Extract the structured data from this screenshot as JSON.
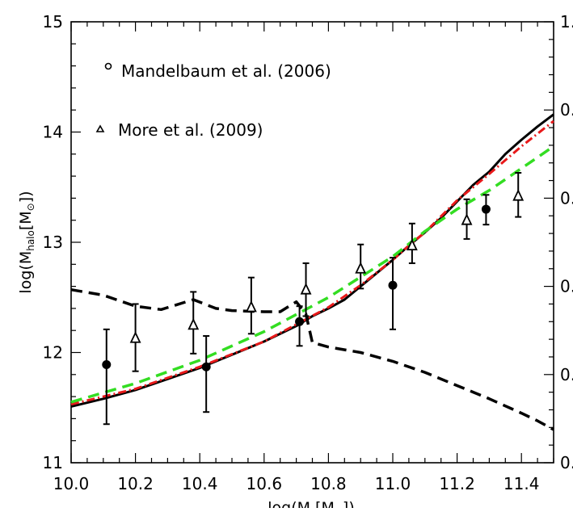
{
  "chart_data": {
    "type": "line",
    "xlabel": "log(M",
    "xlabel_sub": "*",
    "xlabel_unit_open": "[M",
    "xlabel_unit_close": "])",
    "ylabel_prefix": "log(M",
    "ylabel_sub": "halo",
    "ylabel_unit_open": "[M",
    "ylabel_unit_close": "])",
    "sun_symbol": "⊙",
    "xlim": [
      10.0,
      11.5
    ],
    "ylim": [
      11.0,
      15.0
    ],
    "x_ticks": [
      10.0,
      10.2,
      10.4,
      10.6,
      10.8,
      11.0,
      11.2,
      11.4
    ],
    "x_tick_labels": [
      "10.0",
      "10.2",
      "10.4",
      "10.6",
      "10.8",
      "11.0",
      "11.2",
      "11.4"
    ],
    "y_ticks": [
      11,
      12,
      13,
      14,
      15
    ],
    "y_tick_labels": [
      "11",
      "12",
      "13",
      "14",
      "15"
    ],
    "right_axis_tick_labels": [
      "0.",
      "0.",
      "0.",
      "0.",
      "0.",
      "1."
    ],
    "legend": [
      {
        "marker": "circle-open",
        "label": "Mandelbaum et al. (2006)"
      },
      {
        "marker": "triangle-open",
        "label": "More et al. (2009)"
      }
    ],
    "series": [
      {
        "style": "solid",
        "color": "#000000",
        "x": [
          10.0,
          10.1,
          10.2,
          10.3,
          10.4,
          10.5,
          10.6,
          10.7,
          10.75,
          10.8,
          10.85,
          10.9,
          10.95,
          11.0,
          11.05,
          11.1,
          11.15,
          11.2,
          11.25,
          11.3,
          11.35,
          11.4,
          11.45,
          11.5
        ],
        "y": [
          11.51,
          11.58,
          11.66,
          11.76,
          11.86,
          11.98,
          12.1,
          12.24,
          12.33,
          12.4,
          12.48,
          12.6,
          12.72,
          12.84,
          12.97,
          13.09,
          13.22,
          13.37,
          13.52,
          13.64,
          13.8,
          13.93,
          14.05,
          14.16
        ]
      },
      {
        "style": "dash-dot",
        "color": "#e8191a",
        "x": [
          10.0,
          10.2,
          10.4,
          10.6,
          10.8,
          10.9,
          11.0,
          11.05,
          11.1,
          11.2,
          11.3,
          11.4,
          11.5
        ],
        "y": [
          11.53,
          11.67,
          11.87,
          12.1,
          12.41,
          12.61,
          12.84,
          12.97,
          13.09,
          13.38,
          13.62,
          13.87,
          14.1
        ]
      },
      {
        "style": "dashed",
        "color": "#33dd22",
        "x": [
          10.0,
          10.2,
          10.4,
          10.6,
          10.8,
          11.0,
          11.1,
          11.2,
          11.3,
          11.4,
          11.5
        ],
        "y": [
          11.55,
          11.72,
          11.93,
          12.19,
          12.5,
          12.87,
          13.1,
          13.3,
          13.47,
          13.67,
          13.87
        ]
      },
      {
        "style": "dashed",
        "color": "#000000",
        "x": [
          10.0,
          10.1,
          10.2,
          10.28,
          10.38,
          10.45,
          10.5,
          10.6,
          10.65,
          10.7,
          10.73,
          10.75,
          10.8,
          10.9,
          11.0,
          11.1,
          11.2,
          11.25,
          11.3,
          11.4,
          11.45,
          11.5
        ],
        "y": [
          12.57,
          12.52,
          12.42,
          12.39,
          12.48,
          12.4,
          12.38,
          12.37,
          12.37,
          12.46,
          12.35,
          12.09,
          12.05,
          12.0,
          11.92,
          11.82,
          11.7,
          11.64,
          11.58,
          11.45,
          11.38,
          11.3
        ]
      }
    ],
    "mandelbaum_points": [
      {
        "x": 10.11,
        "y": 11.89,
        "lo": 11.35,
        "hi": 12.21
      },
      {
        "x": 10.42,
        "y": 11.87,
        "lo": 11.46,
        "hi": 12.15
      },
      {
        "x": 10.71,
        "y": 12.28,
        "lo": 12.06,
        "hi": 12.42
      },
      {
        "x": 11.0,
        "y": 12.61,
        "lo": 12.21,
        "hi": 12.86
      },
      {
        "x": 11.29,
        "y": 13.3,
        "lo": 13.16,
        "hi": 13.43
      }
    ],
    "more_points": [
      {
        "x": 10.2,
        "y": 12.13,
        "lo": 11.83,
        "hi": 12.44
      },
      {
        "x": 10.38,
        "y": 12.25,
        "lo": 11.99,
        "hi": 12.55
      },
      {
        "x": 10.56,
        "y": 12.41,
        "lo": 12.17,
        "hi": 12.68
      },
      {
        "x": 10.73,
        "y": 12.57,
        "lo": 12.33,
        "hi": 12.81
      },
      {
        "x": 10.9,
        "y": 12.76,
        "lo": 12.58,
        "hi": 12.98
      },
      {
        "x": 11.06,
        "y": 12.97,
        "lo": 12.81,
        "hi": 13.17
      },
      {
        "x": 11.23,
        "y": 13.2,
        "lo": 13.03,
        "hi": 13.39
      },
      {
        "x": 11.39,
        "y": 13.42,
        "lo": 13.23,
        "hi": 13.63
      }
    ]
  }
}
